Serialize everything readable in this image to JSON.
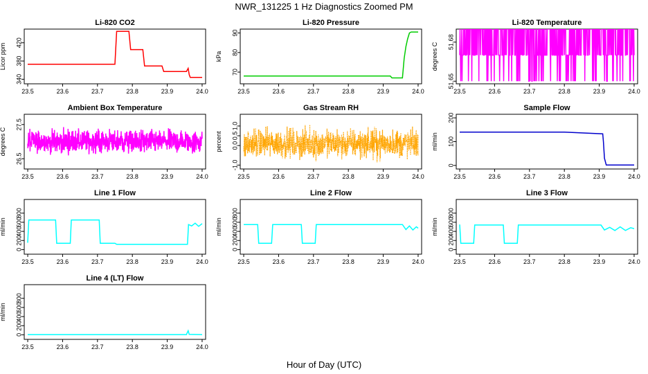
{
  "figure": {
    "title": "NWR_131225  1 Hz Diagnostics Zoomed PM",
    "xlabel": "Hour of Day (UTC)"
  },
  "chart_data": [
    {
      "id": "co2",
      "type": "line",
      "title": "Li-820 CO2",
      "ylabel": "Licor ppm",
      "color": "#ff0000",
      "xlim": [
        23.49,
        24.01
      ],
      "ylim": [
        330,
        450
      ],
      "xticks": [
        "23.5",
        "23.6",
        "23.7",
        "23.8",
        "23.9",
        "24.0"
      ],
      "yticks": [
        "340",
        "380",
        "420"
      ],
      "x": [
        23.5,
        23.75,
        23.755,
        23.79,
        23.795,
        23.83,
        23.835,
        23.885,
        23.89,
        23.95,
        23.955,
        23.96,
        23.963,
        23.966,
        24.0
      ],
      "y": [
        373,
        373,
        445,
        445,
        405,
        405,
        369,
        369,
        357,
        357,
        357,
        364,
        350,
        344,
        344
      ]
    },
    {
      "id": "pressure",
      "type": "line",
      "title": "Li-820 Pressure",
      "ylabel": "kPa",
      "color": "#00cc00",
      "xlim": [
        23.49,
        24.01
      ],
      "ylim": [
        64,
        92
      ],
      "xticks": [
        "23.5",
        "23.6",
        "23.7",
        "23.8",
        "23.9",
        "24.0"
      ],
      "yticks": [
        "70",
        "80",
        "90"
      ],
      "x": [
        23.5,
        23.92,
        23.925,
        23.955,
        23.96,
        23.965,
        23.97,
        23.975,
        23.98,
        24.0
      ],
      "y": [
        68,
        68,
        67,
        67,
        77,
        83,
        87,
        90,
        90.5,
        90.5
      ]
    },
    {
      "id": "li820temp",
      "type": "line",
      "title": "Li-820 Temperature",
      "ylabel": "degrees C",
      "color": "#ff00ff",
      "xlim": [
        23.49,
        24.01
      ],
      "ylim": [
        51.648,
        51.69
      ],
      "xticks": [
        "23.5",
        "23.6",
        "23.7",
        "23.8",
        "23.9",
        "24.0"
      ],
      "yticks": [
        "51.65",
        "51.68"
      ],
      "levels": [
        51.65,
        51.67,
        51.69
      ]
    },
    {
      "id": "boxtemp",
      "type": "line",
      "title": "Ambient Box Temperature",
      "ylabel": "degrees C",
      "color": "#ff00ff",
      "xlim": [
        23.49,
        24.01
      ],
      "ylim": [
        26.2,
        27.8
      ],
      "xticks": [
        "23.5",
        "23.6",
        "23.7",
        "23.8",
        "23.9",
        "24.0"
      ],
      "yticks": [
        "26.5",
        "27.5"
      ],
      "center": 27.0,
      "spread": 0.25
    },
    {
      "id": "rh",
      "type": "line",
      "title": "Gas Stream RH",
      "ylabel": "percent",
      "color": "#ffa500",
      "xlim": [
        23.49,
        24.01
      ],
      "ylim": [
        -1.2,
        1.6
      ],
      "xticks": [
        "23.5",
        "23.6",
        "23.7",
        "23.8",
        "23.9",
        "24.0"
      ],
      "yticks": [
        "-1.0",
        "0.0",
        "0.5",
        "1.0"
      ],
      "center": 0.1,
      "spread": 0.55
    },
    {
      "id": "sampleflow",
      "type": "line",
      "title": "Sample Flow",
      "ylabel": "ml/min",
      "color": "#0000cc",
      "xlim": [
        23.49,
        24.01
      ],
      "ylim": [
        -15,
        215
      ],
      "xticks": [
        "23.5",
        "23.6",
        "23.7",
        "23.8",
        "23.9",
        "24.0"
      ],
      "yticks": [
        "0",
        "100",
        "200"
      ],
      "x": [
        23.5,
        23.8,
        23.91,
        23.912,
        23.915,
        23.92,
        24.0
      ],
      "y": [
        140,
        140,
        133,
        100,
        30,
        2,
        2
      ]
    },
    {
      "id": "line1",
      "type": "line",
      "title": "Line 1 Flow",
      "ylabel": "ml/min",
      "color": "#00ffff",
      "xlim": [
        23.49,
        24.01
      ],
      "ylim": [
        -100,
        1100
      ],
      "xticks": [
        "23.5",
        "23.6",
        "23.7",
        "23.8",
        "23.9",
        "24.0"
      ],
      "yticks": [
        "0",
        "200",
        "400",
        "600",
        "800"
      ],
      "x": [
        23.5,
        23.503,
        23.58,
        23.583,
        23.622,
        23.625,
        23.705,
        23.708,
        23.75,
        23.755,
        23.958,
        23.961,
        23.97,
        23.98,
        23.99,
        24.0
      ],
      "y": [
        150,
        650,
        650,
        140,
        140,
        650,
        650,
        140,
        140,
        115,
        115,
        550,
        520,
        580,
        510,
        570
      ]
    },
    {
      "id": "line2",
      "type": "line",
      "title": "Line 2 Flow",
      "ylabel": "ml/min",
      "color": "#00ffff",
      "xlim": [
        23.49,
        24.01
      ],
      "ylim": [
        -100,
        1100
      ],
      "xticks": [
        "23.5",
        "23.6",
        "23.7",
        "23.8",
        "23.9",
        "24.0"
      ],
      "yticks": [
        "0",
        "200",
        "400",
        "600",
        "800"
      ],
      "x": [
        23.5,
        23.54,
        23.543,
        23.58,
        23.583,
        23.665,
        23.668,
        23.705,
        23.708,
        23.955,
        23.965,
        23.975,
        23.985,
        23.995,
        24.0
      ],
      "y": [
        550,
        550,
        140,
        140,
        550,
        550,
        140,
        140,
        550,
        550,
        440,
        520,
        430,
        500,
        470
      ]
    },
    {
      "id": "line3",
      "type": "line",
      "title": "Line 3 Flow",
      "ylabel": "ml/min",
      "color": "#00ffff",
      "xlim": [
        23.49,
        24.01
      ],
      "ylim": [
        -100,
        1100
      ],
      "xticks": [
        "23.5",
        "23.6",
        "23.7",
        "23.8",
        "23.9",
        "24.0"
      ],
      "yticks": [
        "0",
        "200",
        "400",
        "600",
        "800"
      ],
      "x": [
        23.5,
        23.503,
        23.54,
        23.543,
        23.625,
        23.628,
        23.665,
        23.668,
        23.905,
        23.915,
        23.93,
        23.945,
        23.96,
        23.975,
        23.99,
        24.0
      ],
      "y": [
        550,
        140,
        140,
        540,
        540,
        140,
        140,
        540,
        540,
        430,
        490,
        420,
        500,
        420,
        480,
        460
      ]
    },
    {
      "id": "line4",
      "type": "line",
      "title": "Line 4 (LT) Flow",
      "ylabel": "ml/min",
      "color": "#00ffff",
      "xlim": [
        23.49,
        24.01
      ],
      "ylim": [
        -100,
        1100
      ],
      "xticks": [
        "23.5",
        "23.6",
        "23.7",
        "23.8",
        "23.9",
        "24.0"
      ],
      "yticks": [
        "0",
        "200",
        "400",
        "600",
        "800"
      ],
      "x": [
        23.5,
        23.955,
        23.958,
        23.96,
        23.963,
        24.0
      ],
      "y": [
        5,
        5,
        60,
        90,
        10,
        5
      ]
    }
  ]
}
